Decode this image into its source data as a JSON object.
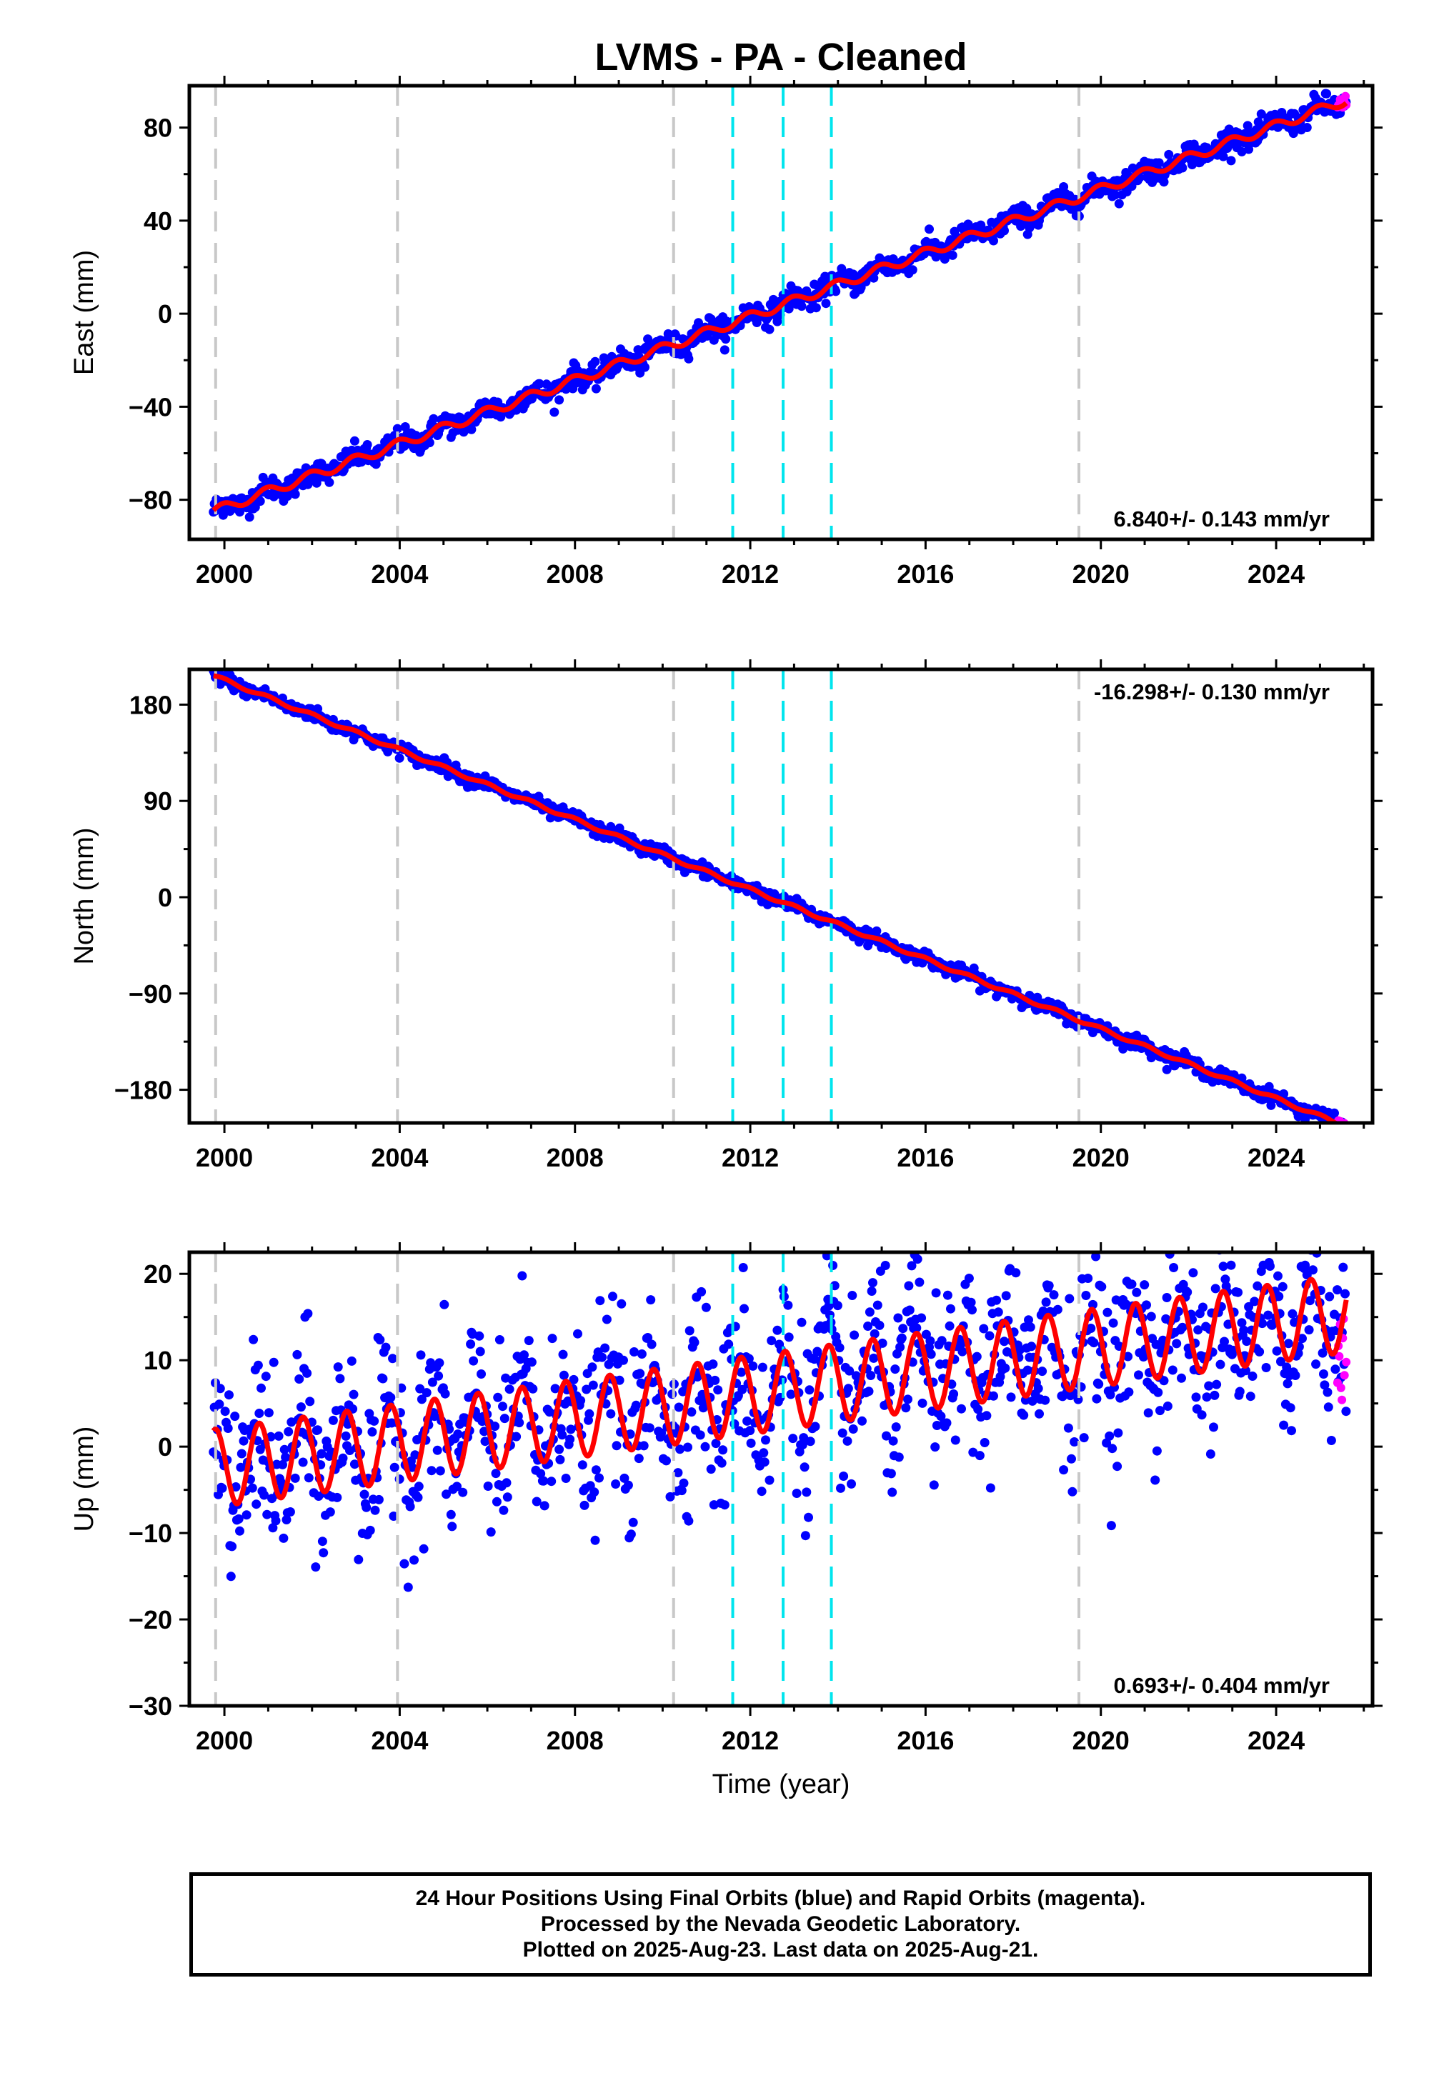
{
  "title": "LVMS  - PA - Cleaned",
  "footer": {
    "line1": "24 Hour Positions Using Final Orbits (blue) and Rapid Orbits (magenta).",
    "line2": "Processed by the Nevada Geodetic Laboratory.",
    "line3": "Plotted on 2025-Aug-23. Last data on 2025-Aug-21."
  },
  "colors": {
    "final_orbits": "#0000ff",
    "rapid_orbits": "#ff00ff",
    "model": "#ff0000",
    "equipment_change": "#c8c8c8",
    "earthquake": "#00e5ee"
  },
  "chart_data": [
    {
      "type": "scatter",
      "component": "East",
      "ylabel": "East (mm)",
      "xlabel": "",
      "xlim": [
        1999.2,
        2026.2
      ],
      "ylim": [
        -97,
        98
      ],
      "yticks": [
        -80,
        -40,
        0,
        40,
        80
      ],
      "xticks": [
        2000,
        2004,
        2008,
        2012,
        2016,
        2020,
        2024
      ],
      "trend": {
        "start_year": 1999.75,
        "start_value": -85,
        "rate_mm_per_yr": 6.84,
        "annual_amplitude": 2.0,
        "annual_phase": 0.25
      },
      "rate_label": "6.840+/- 0.143 mm/yr",
      "rate_position": "bottom-right",
      "equipment_lines": [
        1999.8,
        2003.95,
        2010.25,
        2019.5
      ],
      "earthquake_lines": [
        2011.6,
        2012.75,
        2013.85
      ],
      "data_span": [
        1999.75,
        2025.6
      ],
      "scatter_noise": 2.5,
      "rapid_span": [
        2025.4,
        2025.6
      ]
    },
    {
      "type": "scatter",
      "component": "North",
      "ylabel": "North (mm)",
      "xlabel": "",
      "xlim": [
        1999.2,
        2026.2
      ],
      "ylim": [
        -211,
        213
      ],
      "yticks": [
        -180,
        -90,
        0,
        90,
        180
      ],
      "xticks": [
        2000,
        2004,
        2008,
        2012,
        2016,
        2020,
        2024
      ],
      "trend": {
        "start_year": 1999.75,
        "start_value": 207,
        "rate_mm_per_yr": -16.298,
        "annual_amplitude": 1.5,
        "annual_phase": 0.0
      },
      "rate_label": "-16.298+/- 0.130 mm/yr",
      "rate_position": "top-right",
      "equipment_lines": [
        1999.8,
        2003.95,
        2010.25,
        2019.5
      ],
      "earthquake_lines": [
        2011.6,
        2012.75,
        2013.85
      ],
      "data_span": [
        1999.75,
        2025.6
      ],
      "scatter_noise": 3.2,
      "rapid_span": [
        2025.4,
        2025.6
      ]
    },
    {
      "type": "scatter",
      "component": "Up",
      "ylabel": "Up (mm)",
      "xlabel": "Time (year)",
      "xlim": [
        1999.2,
        2026.2
      ],
      "ylim": [
        -30,
        22.5
      ],
      "yticks": [
        -30,
        -20,
        -10,
        0,
        10,
        20
      ],
      "xticks": [
        2000,
        2004,
        2008,
        2012,
        2016,
        2020,
        2024
      ],
      "trend": {
        "start_year": 1999.75,
        "start_value": -2.5,
        "rate_mm_per_yr": 0.693,
        "annual_amplitude": 4.5,
        "annual_phase": 1.3
      },
      "rate_label": "0.693+/- 0.404 mm/yr",
      "rate_position": "bottom-right",
      "equipment_lines": [
        1999.8,
        2003.95,
        2010.25,
        2019.5
      ],
      "earthquake_lines": [
        2011.6,
        2012.75,
        2013.85
      ],
      "data_span": [
        1999.75,
        2025.6
      ],
      "scatter_noise": 5.0,
      "rapid_span": [
        2025.4,
        2025.6
      ]
    }
  ]
}
